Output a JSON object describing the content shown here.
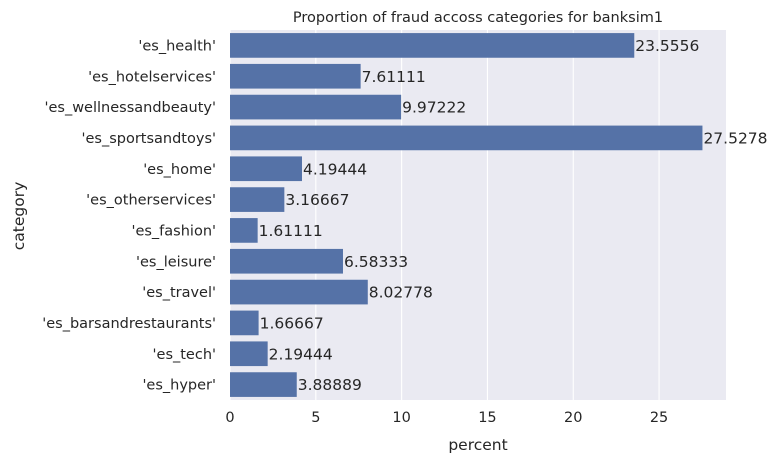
{
  "chart_data": {
    "type": "bar",
    "orientation": "horizontal",
    "title": "Proportion of fraud accoss categories for banksim1",
    "xlabel": "percent",
    "ylabel": "category",
    "categories": [
      "'es_health'",
      "'es_hotelservices'",
      "'es_wellnessandbeauty'",
      "'es_sportsandtoys'",
      "'es_home'",
      "'es_otherservices'",
      "'es_fashion'",
      "'es_leisure'",
      "'es_travel'",
      "'es_barsandrestaurants'",
      "'es_tech'",
      "'es_hyper'"
    ],
    "values": [
      23.5556,
      7.61111,
      9.97222,
      27.5278,
      4.19444,
      3.16667,
      1.61111,
      6.58333,
      8.02778,
      1.66667,
      2.19444,
      3.88889
    ],
    "value_labels": [
      "23.5556",
      "7.61111",
      "9.97222",
      "27.5278",
      "4.19444",
      "3.16667",
      "1.61111",
      "6.58333",
      "8.02778",
      "1.66667",
      "2.19444",
      "3.88889"
    ],
    "xticks": [
      "0",
      "5",
      "10",
      "15",
      "20",
      "25"
    ],
    "xlim": [
      0,
      28.9
    ],
    "grid": true,
    "legend": "none",
    "colors": {
      "bar": "#5572a7",
      "background": "#eaeaf2",
      "grid": "#ffffff"
    }
  }
}
